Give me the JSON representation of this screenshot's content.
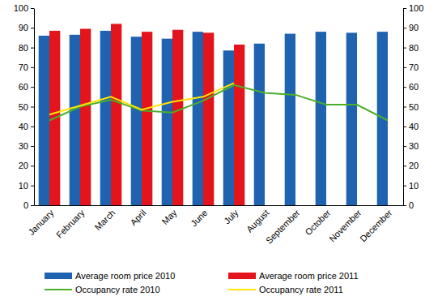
{
  "chart_data": {
    "type": "bar",
    "categories": [
      "January",
      "February",
      "March",
      "April",
      "May",
      "June",
      "July",
      "August",
      "September",
      "October",
      "November",
      "December"
    ],
    "series": [
      {
        "name": "Average room price 2010",
        "type": "bar",
        "color": "#1f62b0",
        "values": [
          86,
          86.5,
          88.5,
          85.5,
          84.5,
          88,
          78.5,
          82,
          87,
          88,
          87.5,
          88
        ]
      },
      {
        "name": "Average room price 2011",
        "type": "bar",
        "color": "#e3141c",
        "values": [
          88.5,
          89.5,
          92,
          88,
          89,
          87.5,
          81.5,
          null,
          null,
          null,
          null,
          null
        ]
      },
      {
        "name": "Occupancy rate 2010",
        "type": "line",
        "color": "#4caf2a",
        "axis": "y2",
        "values": [
          43,
          50,
          53.5,
          48,
          47,
          53,
          61,
          57,
          56,
          51,
          51,
          43
        ]
      },
      {
        "name": "Occupancy rate 2011",
        "type": "line",
        "color": "#ffe600",
        "axis": "y2",
        "values": [
          46,
          50.5,
          55,
          48.5,
          52.5,
          55,
          62,
          null,
          null,
          null,
          null,
          null
        ]
      }
    ],
    "ylim": [
      0,
      100
    ],
    "yticks": [
      0,
      10,
      20,
      30,
      40,
      50,
      60,
      70,
      80,
      90,
      100
    ],
    "y2lim": [
      0,
      100
    ],
    "y2ticks": [
      0,
      10,
      20,
      30,
      40,
      50,
      60,
      70,
      80,
      90,
      100
    ],
    "grid": false
  }
}
